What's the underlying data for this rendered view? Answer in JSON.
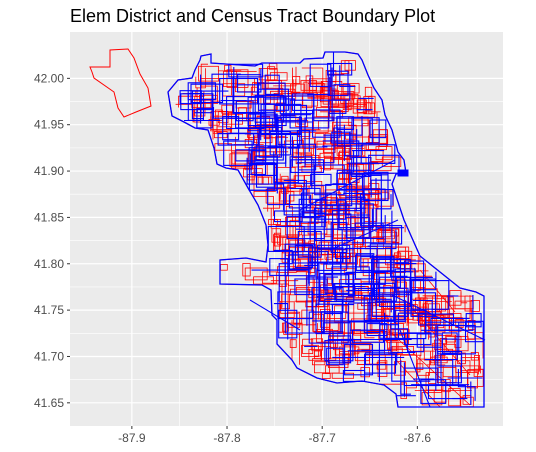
{
  "title": "Elem District and Census Tract Boundary Plot",
  "chart_data": {
    "type": "map",
    "title": "Elem District and Census Tract Boundary Plot",
    "xlabel": "",
    "ylabel": "",
    "xlim": [
      -87.965,
      -87.51
    ],
    "ylim": [
      41.625,
      42.05
    ],
    "x_ticks": [
      -87.9,
      -87.8,
      -87.7,
      -87.6
    ],
    "y_ticks": [
      41.65,
      41.7,
      41.75,
      41.8,
      41.85,
      41.9,
      41.95,
      42.0
    ],
    "x_tick_labels": [
      "-87.9",
      "-87.8",
      "-87.7",
      "-87.6"
    ],
    "y_tick_labels": [
      "41.65",
      "41.70",
      "41.75",
      "41.80",
      "41.85",
      "41.90",
      "41.95",
      "42.00"
    ],
    "grid": true,
    "legend": "none",
    "layers": [
      {
        "role": "census tract boundaries",
        "color": "#ff0000"
      },
      {
        "role": "elementary district boundaries",
        "color": "#0000ff"
      }
    ],
    "background": "#ebebeb",
    "gridline_color": "#ffffff"
  }
}
